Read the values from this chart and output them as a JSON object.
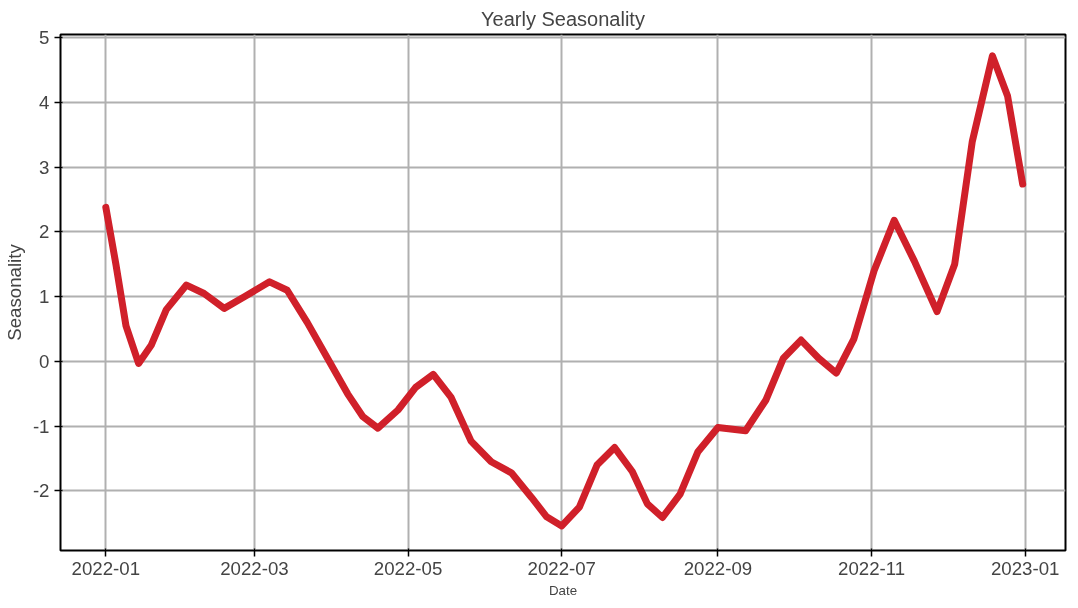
{
  "chart_data": {
    "type": "line",
    "title": "Yearly Seasonality",
    "xlabel": "Date",
    "ylabel": "Seasonality",
    "x": [
      "2022-01-01",
      "2022-01-05",
      "2022-01-09",
      "2022-01-14",
      "2022-01-19",
      "2022-01-25",
      "2022-02-02",
      "2022-02-09",
      "2022-02-17",
      "2022-02-25",
      "2022-03-07",
      "2022-03-14",
      "2022-03-22",
      "2022-03-30",
      "2022-04-07",
      "2022-04-13",
      "2022-04-19",
      "2022-04-27",
      "2022-05-04",
      "2022-05-11",
      "2022-05-18",
      "2022-05-26",
      "2022-06-03",
      "2022-06-11",
      "2022-06-19",
      "2022-06-25",
      "2022-07-01",
      "2022-07-08",
      "2022-07-15",
      "2022-07-22",
      "2022-07-29",
      "2022-08-04",
      "2022-08-10",
      "2022-08-17",
      "2022-08-24",
      "2022-09-01",
      "2022-09-12",
      "2022-09-20",
      "2022-09-27",
      "2022-10-04",
      "2022-10-11",
      "2022-10-18",
      "2022-10-25",
      "2022-11-02",
      "2022-11-10",
      "2022-11-18",
      "2022-11-27",
      "2022-12-04",
      "2022-12-11",
      "2022-12-19",
      "2022-12-25",
      "2022-12-31"
    ],
    "series": [
      {
        "color": "#d0202a",
        "values": [
          2.38,
          1.5,
          0.55,
          -0.03,
          0.25,
          0.8,
          1.18,
          1.05,
          0.82,
          1.0,
          1.23,
          1.1,
          0.6,
          0.05,
          -0.5,
          -0.85,
          -1.03,
          -0.75,
          -0.4,
          -0.2,
          -0.55,
          -1.23,
          -1.55,
          -1.72,
          -2.1,
          -2.4,
          -2.54,
          -2.25,
          -1.6,
          -1.33,
          -1.7,
          -2.2,
          -2.41,
          -2.05,
          -1.4,
          -1.02,
          -1.07,
          -0.6,
          0.05,
          0.33,
          0.05,
          -0.18,
          0.35,
          1.4,
          2.18,
          1.55,
          0.77,
          1.5,
          3.4,
          4.72,
          4.1,
          2.74
        ]
      }
    ],
    "xlim": [
      "2021-12-14",
      "2023-01-17"
    ],
    "ylim": [
      -2.92,
      5.05
    ],
    "xticks": [
      "2022-01",
      "2022-03",
      "2022-05",
      "2022-07",
      "2022-09",
      "2022-11",
      "2023-01"
    ],
    "yticks": [
      -2,
      -1,
      0,
      1,
      2,
      3,
      4,
      5
    ],
    "grid": true,
    "marker": "none",
    "line_style": "solid"
  }
}
